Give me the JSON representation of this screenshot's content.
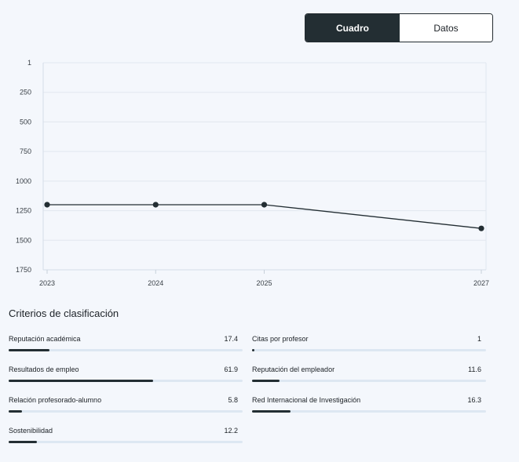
{
  "toggle": {
    "chart_label": "Cuadro",
    "data_label": "Datos",
    "active": "chart"
  },
  "chart_data": {
    "type": "line",
    "title": "",
    "xlabel": "",
    "ylabel": "",
    "x": [
      2023,
      2024,
      2025,
      2027
    ],
    "values": [
      1200,
      1200,
      1200,
      1400
    ],
    "x_ticks": [
      "2023",
      "2024",
      "2025",
      "2027"
    ],
    "y_ticks": [
      "1",
      "250",
      "500",
      "750",
      "1000",
      "1250",
      "1500",
      "1750"
    ],
    "y_tick_values": [
      1,
      250,
      500,
      750,
      1000,
      1250,
      1500,
      1750
    ],
    "ylim": [
      1,
      1750
    ],
    "y_inverted": true,
    "grid": true,
    "line_color": "#232e33"
  },
  "criteria": {
    "title": "Criterios de clasificación",
    "items": [
      {
        "label": "Reputación académica",
        "value": "17.4",
        "score": 17.4
      },
      {
        "label": "Citas por profesor",
        "value": "1",
        "score": 1
      },
      {
        "label": "Resultados de empleo",
        "value": "61.9",
        "score": 61.9
      },
      {
        "label": "Reputación del empleador",
        "value": "11.6",
        "score": 11.6
      },
      {
        "label": "Relación profesorado-alumno",
        "value": "5.8",
        "score": 5.8
      },
      {
        "label": "Red Internacional de Investigación",
        "value": "16.3",
        "score": 16.3
      },
      {
        "label": "Sostenibilidad",
        "value": "12.2",
        "score": 12.2
      }
    ]
  }
}
